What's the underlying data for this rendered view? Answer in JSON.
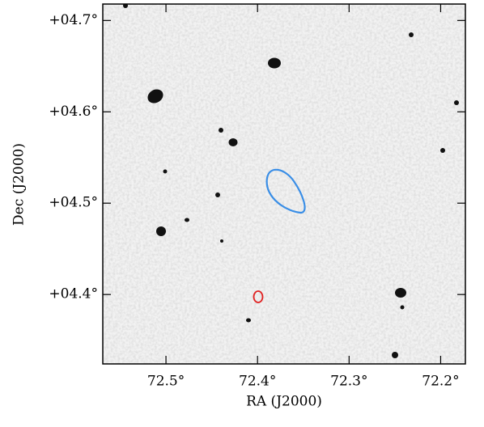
{
  "chart_data": {
    "type": "sky-image",
    "xlabel": "RA (J2000)",
    "ylabel": "Dec (J2000)",
    "xlim": [
      72.569,
      72.173
    ],
    "ylim": [
      4.324,
      4.718
    ],
    "xticks": [
      {
        "value": 72.5,
        "label": "72.5°"
      },
      {
        "value": 72.4,
        "label": "72.4°"
      },
      {
        "value": 72.3,
        "label": "72.3°"
      },
      {
        "value": 72.2,
        "label": "72.2°"
      }
    ],
    "yticks": [
      {
        "value": 4.4,
        "label": "+04.4°"
      },
      {
        "value": 4.5,
        "label": "+04.5°"
      },
      {
        "value": 4.6,
        "label": "+04.6°"
      },
      {
        "value": 4.7,
        "label": "+04.7°"
      }
    ]
  }
}
